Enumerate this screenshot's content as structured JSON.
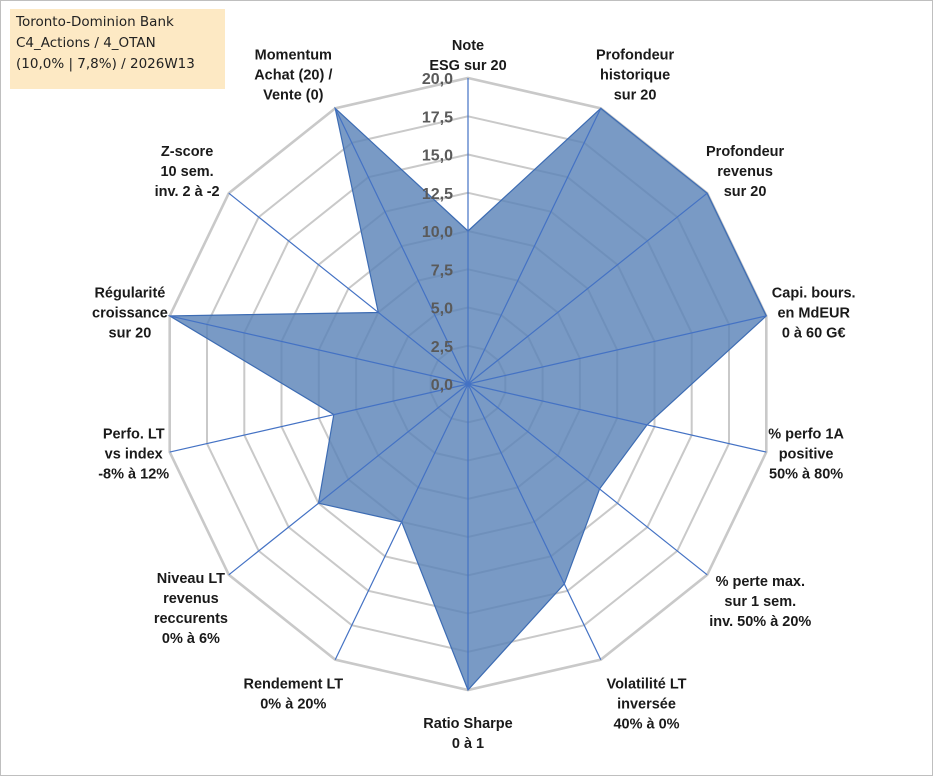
{
  "info_box": {
    "line1": "Toronto-Dominion Bank",
    "line2": "C4_Actions / 4_OTAN",
    "line3": "(10,0% | 7,8%) / 2026W13"
  },
  "chart_data": {
    "type": "radar",
    "title": "",
    "rmin": 0,
    "rmax": 20,
    "tick_step": 2.5,
    "tick_labels": [
      "0,0",
      "2,5",
      "5,0",
      "7,5",
      "10,0",
      "12,5",
      "15,0",
      "17,5",
      "20,0"
    ],
    "axes": [
      [
        "Note",
        "ESG sur 20"
      ],
      [
        "Profondeur",
        "historique",
        "sur 20"
      ],
      [
        "Profondeur",
        "revenus",
        "sur 20"
      ],
      [
        "Capi. bours.",
        "en MdEUR",
        "0 à 60 G€"
      ],
      [
        "% perfo 1A",
        "positive",
        "50% à 80%"
      ],
      [
        "% perte max.",
        "sur 1 sem.",
        "inv. 50% à 20%"
      ],
      [
        "Volatilité LT",
        "inversée",
        "40% à 0%"
      ],
      [
        "Ratio Sharpe",
        "0 à 1"
      ],
      [
        "Rendement LT",
        "0% à 20%"
      ],
      [
        "Niveau LT",
        "revenus",
        "reccurents",
        "0% à 6%"
      ],
      [
        "Perfo. LT",
        "vs index",
        "-8% à 12%"
      ],
      [
        "Régularité",
        "croissance",
        "sur 20"
      ],
      [
        "Z-score",
        "10 sem.",
        "inv. 2 à -2"
      ],
      [
        "Momentum",
        "Achat (20) /",
        "Vente (0)"
      ]
    ],
    "series": [
      {
        "values": [
          10,
          20,
          20,
          20,
          12,
          11,
          14.5,
          20,
          10,
          12.5,
          9,
          20,
          7.5,
          20
        ]
      }
    ],
    "colors": {
      "fill": "#5b84b8",
      "stroke": "#3d6cb3",
      "spoke": "#4472c4",
      "grid": "#c9c9c9",
      "tick": "#5a5a5a"
    },
    "grid": true
  }
}
